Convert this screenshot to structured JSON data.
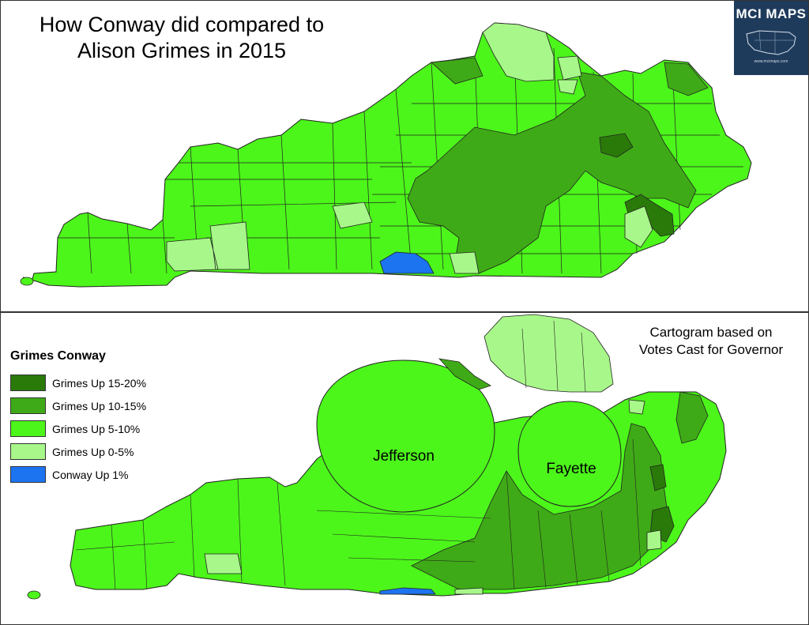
{
  "top_panel": {
    "title": "How Conway did compared to Alison Grimes in 2015"
  },
  "logo": {
    "text": "MCI MAPS",
    "url": "www.mcimaps.com"
  },
  "bottom_panel": {
    "note": "Cartogram based on Votes Cast for Governor",
    "labels": {
      "jefferson": "Jefferson",
      "fayette": "Fayette"
    }
  },
  "legend": {
    "title": "Grimes Conway",
    "items": [
      {
        "label": "Grimes Up 15-20%",
        "color": "#2a7a0a"
      },
      {
        "label": "Grimes Up 10-15%",
        "color": "#3faa17"
      },
      {
        "label": "Grimes Up 5-10%",
        "color": "#4cf51a"
      },
      {
        "label": "Grimes Up 0-5%",
        "color": "#a8f78a"
      },
      {
        "label": "Conway Up 1%",
        "color": "#1c74f0"
      }
    ]
  }
}
